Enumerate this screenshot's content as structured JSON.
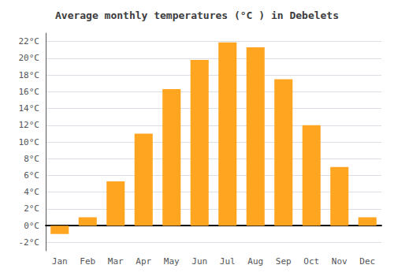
{
  "chart_data": {
    "type": "bar",
    "title": "Average monthly temperatures (°C ) in Debelets",
    "categories": [
      "Jan",
      "Feb",
      "Mar",
      "Apr",
      "May",
      "Jun",
      "Jul",
      "Aug",
      "Sep",
      "Oct",
      "Nov",
      "Dec"
    ],
    "values": [
      -1.0,
      1.0,
      5.3,
      11.0,
      16.3,
      19.8,
      21.9,
      21.3,
      17.5,
      12.0,
      7.0,
      1.0
    ],
    "color": "#FFA520",
    "ylim": [
      -3,
      23
    ],
    "yticks": [
      {
        "value": -2,
        "label": "-2°C"
      },
      {
        "value": 0,
        "label": "0°C"
      },
      {
        "value": 2,
        "label": "2°C"
      },
      {
        "value": 4,
        "label": "4°C"
      },
      {
        "value": 6,
        "label": "6°C"
      },
      {
        "value": 8,
        "label": "8°C"
      },
      {
        "value": 10,
        "label": "10°C"
      },
      {
        "value": 12,
        "label": "12°C"
      },
      {
        "value": 14,
        "label": "14°C"
      },
      {
        "value": 16,
        "label": "16°C"
      },
      {
        "value": 18,
        "label": "18°C"
      },
      {
        "value": 20,
        "label": "20°C"
      },
      {
        "value": 22,
        "label": "22°C"
      }
    ],
    "grid": true
  }
}
